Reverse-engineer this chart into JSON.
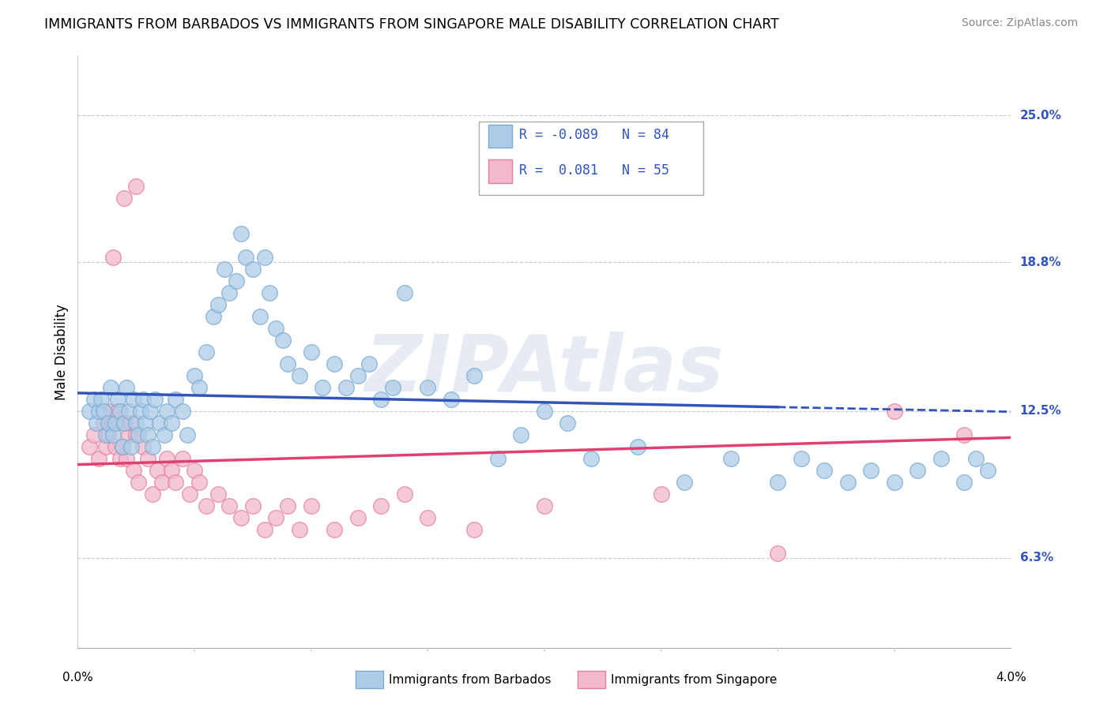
{
  "title": "IMMIGRANTS FROM BARBADOS VS IMMIGRANTS FROM SINGAPORE MALE DISABILITY CORRELATION CHART",
  "source": "Source: ZipAtlas.com",
  "ylabel": "Male Disability",
  "y_ticks": [
    6.3,
    12.5,
    18.8,
    25.0
  ],
  "y_tick_labels": [
    "6.3%",
    "12.5%",
    "18.8%",
    "25.0%"
  ],
  "xlim": [
    0.0,
    4.0
  ],
  "ylim": [
    2.5,
    27.5
  ],
  "barbados_color": "#aecce8",
  "singapore_color": "#f4b8cc",
  "barbados_edge": "#7aaad0",
  "singapore_edge": "#e080a0",
  "barbados_line_color": "#3355bb",
  "singapore_line_color": "#e04070",
  "R_barbados": -0.089,
  "N_barbados": 84,
  "R_singapore": 0.081,
  "N_singapore": 55,
  "legend_label_barbados": "Immigrants from Barbados",
  "legend_label_singapore": "Immigrants from Singapore",
  "watermark": "ZIPAtlas",
  "background_color": "#ffffff",
  "grid_color": "#cccccc",
  "barbados_x": [
    0.05,
    0.07,
    0.08,
    0.09,
    0.1,
    0.11,
    0.12,
    0.13,
    0.14,
    0.15,
    0.16,
    0.17,
    0.18,
    0.19,
    0.2,
    0.21,
    0.22,
    0.23,
    0.24,
    0.25,
    0.26,
    0.27,
    0.28,
    0.29,
    0.3,
    0.31,
    0.32,
    0.33,
    0.35,
    0.37,
    0.38,
    0.4,
    0.42,
    0.45,
    0.47,
    0.5,
    0.52,
    0.55,
    0.58,
    0.6,
    0.63,
    0.65,
    0.68,
    0.7,
    0.72,
    0.75,
    0.78,
    0.8,
    0.82,
    0.85,
    0.88,
    0.9,
    0.95,
    1.0,
    1.05,
    1.1,
    1.15,
    1.2,
    1.25,
    1.3,
    1.35,
    1.4,
    1.5,
    1.6,
    1.7,
    1.8,
    1.9,
    2.0,
    2.1,
    2.2,
    2.4,
    2.6,
    2.8,
    3.0,
    3.1,
    3.2,
    3.3,
    3.4,
    3.5,
    3.6,
    3.7,
    3.8,
    3.85,
    3.9
  ],
  "barbados_y": [
    12.5,
    13.0,
    12.0,
    12.5,
    13.0,
    12.5,
    11.5,
    12.0,
    13.5,
    11.5,
    12.0,
    13.0,
    12.5,
    11.0,
    12.0,
    13.5,
    12.5,
    11.0,
    13.0,
    12.0,
    11.5,
    12.5,
    13.0,
    12.0,
    11.5,
    12.5,
    11.0,
    13.0,
    12.0,
    11.5,
    12.5,
    12.0,
    13.0,
    12.5,
    11.5,
    14.0,
    13.5,
    15.0,
    16.5,
    17.0,
    18.5,
    17.5,
    18.0,
    20.0,
    19.0,
    18.5,
    16.5,
    19.0,
    17.5,
    16.0,
    15.5,
    14.5,
    14.0,
    15.0,
    13.5,
    14.5,
    13.5,
    14.0,
    14.5,
    13.0,
    13.5,
    17.5,
    13.5,
    13.0,
    14.0,
    10.5,
    11.5,
    12.5,
    12.0,
    10.5,
    11.0,
    9.5,
    10.5,
    9.5,
    10.5,
    10.0,
    9.5,
    10.0,
    9.5,
    10.0,
    10.5,
    9.5,
    10.5,
    10.0
  ],
  "singapore_x": [
    0.05,
    0.07,
    0.09,
    0.11,
    0.12,
    0.13,
    0.14,
    0.15,
    0.16,
    0.17,
    0.18,
    0.19,
    0.2,
    0.21,
    0.22,
    0.23,
    0.24,
    0.25,
    0.26,
    0.28,
    0.3,
    0.32,
    0.34,
    0.36,
    0.38,
    0.4,
    0.42,
    0.45,
    0.48,
    0.5,
    0.52,
    0.55,
    0.6,
    0.65,
    0.7,
    0.75,
    0.8,
    0.85,
    0.9,
    0.95,
    1.0,
    1.1,
    1.2,
    1.3,
    1.4,
    1.5,
    1.7,
    2.0,
    2.5,
    3.0,
    3.5,
    3.8,
    0.15,
    0.2,
    0.25
  ],
  "singapore_y": [
    11.0,
    11.5,
    10.5,
    12.0,
    11.0,
    11.5,
    12.5,
    12.0,
    11.0,
    12.5,
    10.5,
    11.0,
    12.0,
    10.5,
    11.5,
    12.0,
    10.0,
    11.5,
    9.5,
    11.0,
    10.5,
    9.0,
    10.0,
    9.5,
    10.5,
    10.0,
    9.5,
    10.5,
    9.0,
    10.0,
    9.5,
    8.5,
    9.0,
    8.5,
    8.0,
    8.5,
    7.5,
    8.0,
    8.5,
    7.5,
    8.5,
    7.5,
    8.0,
    8.5,
    9.0,
    8.0,
    7.5,
    8.5,
    9.0,
    6.5,
    12.5,
    11.5,
    19.0,
    21.5,
    22.0
  ]
}
